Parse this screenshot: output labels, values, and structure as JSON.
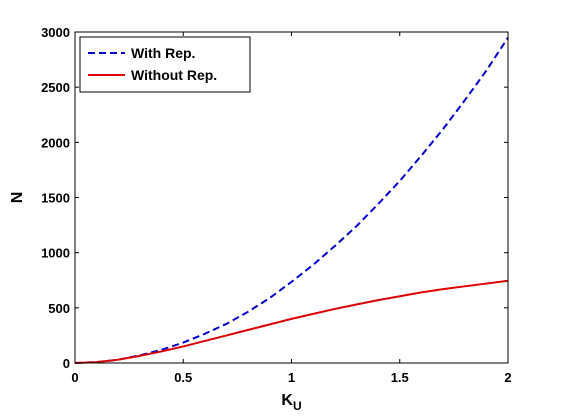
{
  "chart_data": {
    "type": "line",
    "title": "",
    "xlabel": "K",
    "xlabel_sub": "U",
    "ylabel": "N",
    "xlim": [
      0,
      2
    ],
    "ylim": [
      0,
      3000
    ],
    "xticks": [
      0,
      0.5,
      1,
      1.5,
      2
    ],
    "xtick_labels": [
      "0",
      "0.5",
      "1",
      "1.5",
      "2"
    ],
    "yticks": [
      0,
      500,
      1000,
      1500,
      2000,
      2500,
      3000
    ],
    "ytick_labels": [
      "0",
      "500",
      "1000",
      "1500",
      "2000",
      "2500",
      "3000"
    ],
    "grid": false,
    "legend_position": "top-left",
    "series": [
      {
        "name": "With Rep.",
        "color": "#0000cc",
        "style": "dashed",
        "x": [
          0,
          0.1,
          0.2,
          0.3,
          0.4,
          0.5,
          0.6,
          0.7,
          0.8,
          0.9,
          1.0,
          1.1,
          1.2,
          1.3,
          1.4,
          1.5,
          1.6,
          1.7,
          1.8,
          1.9,
          2.0
        ],
        "y": [
          0,
          8,
          30,
          70,
          120,
          185,
          265,
          355,
          465,
          590,
          735,
          890,
          1060,
          1240,
          1440,
          1650,
          1880,
          2120,
          2380,
          2650,
          2950
        ]
      },
      {
        "name": "Without Rep.",
        "color": "#dd0000",
        "style": "solid",
        "x": [
          0,
          0.1,
          0.2,
          0.3,
          0.4,
          0.5,
          0.6,
          0.7,
          0.8,
          0.9,
          1.0,
          1.1,
          1.2,
          1.3,
          1.4,
          1.5,
          1.6,
          1.7,
          1.8,
          1.9,
          2.0
        ],
        "y": [
          0,
          8,
          30,
          65,
          105,
          150,
          200,
          250,
          300,
          350,
          400,
          445,
          490,
          530,
          570,
          605,
          640,
          670,
          695,
          720,
          745
        ]
      }
    ]
  }
}
